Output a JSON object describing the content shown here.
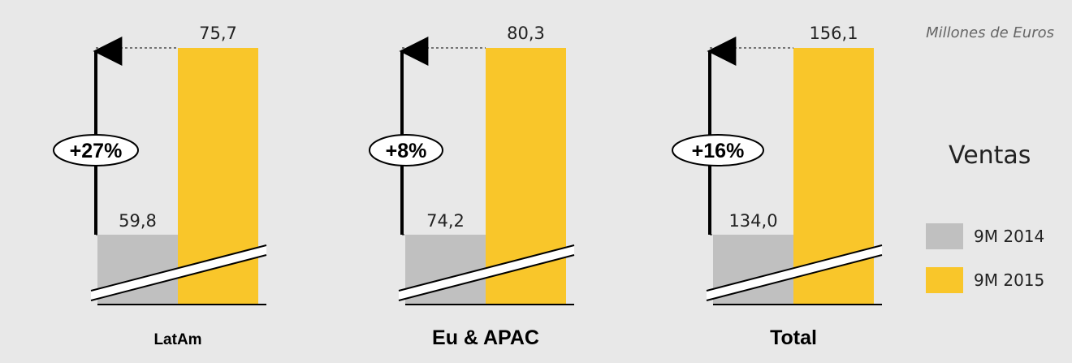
{
  "units_label": "Millones de Euros",
  "measure_label": "Ventas",
  "colors": {
    "background": "#e8e8e8",
    "period_2014": "#c0c0c0",
    "period_2015": "#f9c62a",
    "text": "#222222"
  },
  "chart_data": {
    "type": "bar",
    "title": "",
    "axis_break": true,
    "series": [
      {
        "name": "9M 2014",
        "color": "#c0c0c0"
      },
      {
        "name": "9M 2015",
        "color": "#f9c62a"
      }
    ],
    "groups": [
      {
        "label": "LatAm",
        "values": [
          59.8,
          75.7
        ],
        "value_labels": [
          "59,8",
          "75,7"
        ],
        "growth": "+27%"
      },
      {
        "label": "Eu & APAC",
        "values": [
          74.2,
          80.3
        ],
        "value_labels": [
          "74,2",
          "80,3"
        ],
        "growth": "+8%"
      },
      {
        "label": "Total",
        "values": [
          134.0,
          156.1
        ],
        "value_labels": [
          "134,0",
          "156,1"
        ],
        "growth": "+16%"
      }
    ]
  }
}
